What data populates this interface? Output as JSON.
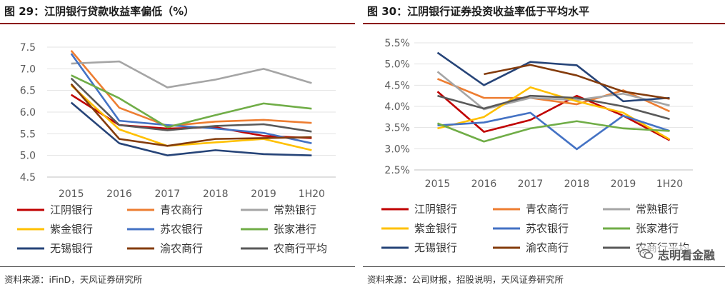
{
  "colors": {
    "jiangyin": "#c00000",
    "qingnong": "#ed7d31",
    "changshu": "#a5a5a5",
    "zijin": "#ffc000",
    "sunong": "#4472c4",
    "zhangjiagang": "#70ad47",
    "wuxi": "#264478",
    "yunong": "#843c0c",
    "avg": "#595959",
    "title_rule": "#8b0000"
  },
  "figures": [
    {
      "title": "图 29：江阴银行贷款收益率偏低（%）",
      "source": "资料来源：iFinD，天风证券研究所"
    },
    {
      "title": "图 30：江阴银行证券投资收益率低于平均水平",
      "source": "资料来源：公司财报，招股说明，天风证券研究所"
    }
  ],
  "watermark": {
    "text": "志明看金融",
    "icon": "wechat-icon"
  },
  "chart_data": [
    {
      "type": "line",
      "title": "图 29：江阴银行贷款收益率偏低（%）",
      "categories": [
        "2015",
        "2016",
        "2017",
        "2018",
        "2019",
        "1H20"
      ],
      "ylim": [
        4.5,
        7.5
      ],
      "yticks": [
        "7.5",
        "7.0",
        "6.5",
        "6.0",
        "5.5",
        "5.0",
        "4.5"
      ],
      "grid": true,
      "legend": "bottom",
      "series": [
        {
          "name": "江阴银行",
          "key": "jiangyin",
          "values": [
            6.4,
            5.7,
            5.62,
            5.65,
            5.45,
            5.4
          ]
        },
        {
          "name": "青农商行",
          "key": "qingnong",
          "values": [
            7.42,
            6.1,
            5.68,
            5.78,
            5.82,
            5.75
          ]
        },
        {
          "name": "常熟银行",
          "key": "changshu",
          "values": [
            7.12,
            7.17,
            6.57,
            6.75,
            7.0,
            6.67
          ]
        },
        {
          "name": "紫金银行",
          "key": "zijin",
          "values": [
            6.62,
            5.6,
            5.22,
            5.3,
            5.38,
            5.12
          ]
        },
        {
          "name": "苏农银行",
          "key": "sunong",
          "values": [
            7.35,
            5.8,
            5.7,
            5.62,
            5.52,
            5.28
          ]
        },
        {
          "name": "张家港行",
          "key": "zhangjiagang",
          "values": [
            6.85,
            6.32,
            5.65,
            5.93,
            6.2,
            6.08
          ]
        },
        {
          "name": "无锡银行",
          "key": "wuxi",
          "values": [
            6.22,
            5.28,
            5.0,
            5.12,
            5.03,
            5.0
          ]
        },
        {
          "name": "渝农商行",
          "key": "yunong",
          "values": [
            6.65,
            5.38,
            5.22,
            5.38,
            5.4,
            5.42
          ]
        },
        {
          "name": "农商行平均",
          "key": "avg",
          "values": [
            6.78,
            5.7,
            5.58,
            5.68,
            5.72,
            5.55
          ]
        }
      ]
    },
    {
      "type": "line",
      "title": "图 30：江阴银行证券投资收益率低于平均水平",
      "categories": [
        "2015",
        "2016",
        "2017",
        "2018",
        "2019",
        "1H20"
      ],
      "ylim": [
        2.5,
        5.5
      ],
      "yticks": [
        "5.5%",
        "5.0%",
        "4.5%",
        "4.0%",
        "3.5%",
        "3.0%",
        "2.5%"
      ],
      "grid": true,
      "legend": "bottom",
      "series": [
        {
          "name": "江阴银行",
          "key": "jiangyin",
          "values": [
            4.35,
            3.4,
            3.68,
            4.25,
            3.78,
            3.2
          ]
        },
        {
          "name": "青农商行",
          "key": "qingnong",
          "values": [
            4.65,
            4.2,
            4.2,
            4.05,
            4.38,
            3.88
          ]
        },
        {
          "name": "常熟银行",
          "key": "changshu",
          "values": [
            4.82,
            3.93,
            4.2,
            4.15,
            4.3,
            4.02
          ]
        },
        {
          "name": "紫金银行",
          "key": "zijin",
          "values": [
            3.48,
            3.75,
            4.45,
            4.12,
            3.85,
            3.22
          ]
        },
        {
          "name": "苏农银行",
          "key": "sunong",
          "values": [
            3.55,
            3.62,
            3.85,
            2.99,
            3.78,
            3.42
          ]
        },
        {
          "name": "张家港行",
          "key": "zhangjiagang",
          "values": [
            3.6,
            3.17,
            3.48,
            3.65,
            3.48,
            3.42
          ]
        },
        {
          "name": "无锡银行",
          "key": "wuxi",
          "values": [
            5.27,
            4.5,
            5.05,
            4.97,
            4.12,
            4.2
          ]
        },
        {
          "name": "渝农商行",
          "key": "yunong",
          "values": [
            null,
            4.76,
            4.98,
            4.73,
            4.35,
            4.18
          ]
        },
        {
          "name": "农商行平均",
          "key": "avg",
          "values": [
            4.25,
            3.95,
            4.25,
            4.2,
            4.0,
            3.7
          ]
        }
      ]
    }
  ]
}
